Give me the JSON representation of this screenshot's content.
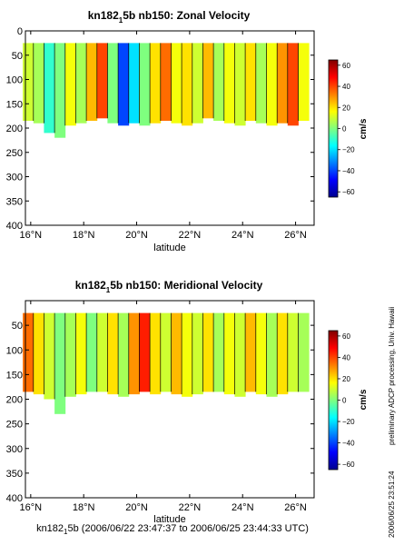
{
  "chart_data": [
    {
      "type": "heatmap",
      "title_main": "kn182",
      "title_sub": "1",
      "title_rest": "5b nb150: Zonal Velocity",
      "xlabel": "latitude",
      "ylabel": "",
      "colorbar_label": "cm/s",
      "xlim": [
        15.8,
        26.7
      ],
      "ylim": [
        400,
        0
      ],
      "x_ticks": [
        16,
        18,
        20,
        22,
        24,
        26
      ],
      "x_tick_labels": [
        "16°N",
        "18°N",
        "20°N",
        "22°N",
        "24°N",
        "26°N"
      ],
      "y_ticks": [
        0,
        50,
        100,
        150,
        200,
        250,
        300,
        350,
        400
      ],
      "y_tick_labels": [
        "0",
        "50",
        "100",
        "150",
        "200",
        "250",
        "300",
        "350",
        "400"
      ],
      "colorbar_ticks": [
        60,
        40,
        20,
        0,
        -20,
        -40,
        -60
      ],
      "colorbar_tick_labels": [
        "60",
        "40",
        "20",
        "0",
        "−20",
        "−40",
        "−60"
      ],
      "clim": [
        -65,
        65
      ],
      "depth_range": [
        25,
        200
      ],
      "lat_bins": [
        15.9,
        16.3,
        16.7,
        17.1,
        17.5,
        17.9,
        18.3,
        18.7,
        19.1,
        19.5,
        19.9,
        20.3,
        20.7,
        21.1,
        21.5,
        21.9,
        22.3,
        22.7,
        23.1,
        23.5,
        23.9,
        24.3,
        24.7,
        25.1,
        25.5,
        25.9,
        26.3
      ],
      "velocity_cm_s": [
        10,
        5,
        -10,
        0,
        15,
        5,
        25,
        40,
        0,
        -40,
        -20,
        0,
        20,
        35,
        15,
        20,
        10,
        25,
        5,
        15,
        10,
        20,
        5,
        15,
        30,
        40,
        15
      ],
      "bottom_depth": [
        185,
        190,
        210,
        220,
        195,
        190,
        185,
        180,
        190,
        195,
        190,
        195,
        190,
        185,
        190,
        195,
        190,
        180,
        185,
        190,
        195,
        185,
        190,
        195,
        190,
        195,
        185
      ]
    },
    {
      "type": "heatmap",
      "title_main": "kn182",
      "title_sub": "1",
      "title_rest": "5b nb150: Meridional Velocity",
      "xlabel": "latitude",
      "ylabel": "",
      "colorbar_label": "cm/s",
      "xlim": [
        15.8,
        26.7
      ],
      "ylim": [
        400,
        0
      ],
      "x_ticks": [
        16,
        18,
        20,
        22,
        24,
        26
      ],
      "x_tick_labels": [
        "16°N",
        "18°N",
        "20°N",
        "22°N",
        "24°N",
        "26°N"
      ],
      "y_ticks": [
        50,
        100,
        150,
        200,
        250,
        300,
        350,
        400
      ],
      "y_tick_labels": [
        "50",
        "100",
        "150",
        "200",
        "250",
        "300",
        "350",
        "400"
      ],
      "colorbar_ticks": [
        60,
        40,
        20,
        0,
        -20,
        -40,
        -60
      ],
      "colorbar_tick_labels": [
        "60",
        "40",
        "20",
        "0",
        "−20",
        "−40",
        "−60"
      ],
      "clim": [
        -65,
        65
      ],
      "depth_range": [
        25,
        200
      ],
      "lat_bins": [
        15.9,
        16.3,
        16.7,
        17.1,
        17.5,
        17.9,
        18.3,
        18.7,
        19.1,
        19.5,
        19.9,
        20.3,
        20.7,
        21.1,
        21.5,
        21.9,
        22.3,
        22.7,
        23.1,
        23.5,
        23.9,
        24.3,
        24.7,
        25.1,
        25.5,
        25.9,
        26.3
      ],
      "velocity_cm_s": [
        35,
        20,
        10,
        0,
        5,
        15,
        0,
        10,
        20,
        5,
        30,
        45,
        20,
        10,
        25,
        15,
        10,
        20,
        5,
        15,
        10,
        25,
        15,
        5,
        20,
        10,
        5
      ],
      "bottom_depth": [
        185,
        190,
        200,
        230,
        195,
        190,
        185,
        185,
        190,
        195,
        190,
        185,
        190,
        185,
        190,
        195,
        190,
        185,
        185,
        190,
        195,
        185,
        190,
        195,
        190,
        185,
        185
      ]
    }
  ],
  "footer": {
    "main": "kn182",
    "sub": "1",
    "rest": "5b (2006/06/22 23:47:37 to 2006/06/25 23:44:33 UTC)"
  },
  "side_note": "preliminary ADCP processing,  Univ. Hawaii",
  "side_timestamp": "2006/06/25 23:51:24"
}
